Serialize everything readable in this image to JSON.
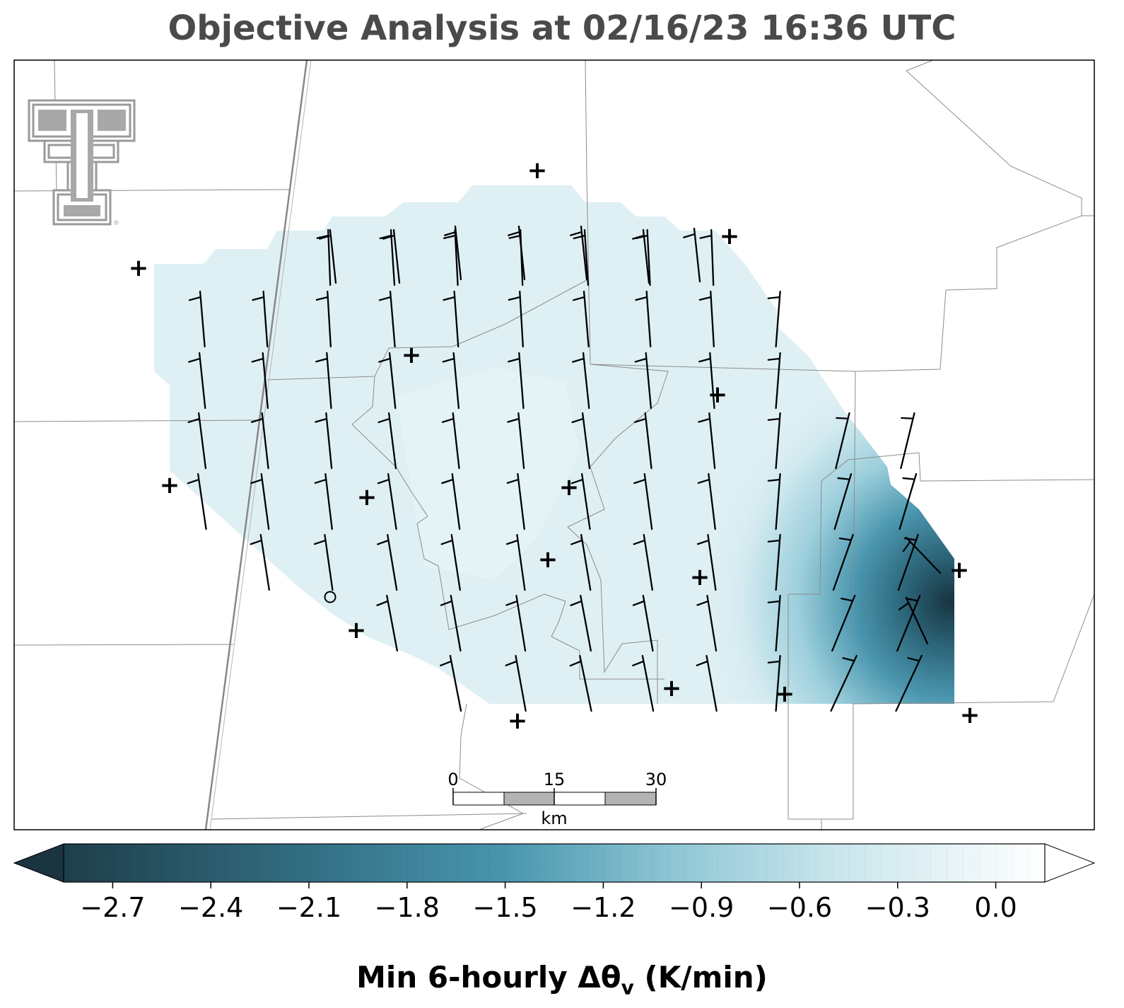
{
  "title": "Objective Analysis at 02/16/23 16:36 UTC",
  "colorbar": {
    "label_main": "Min 6-hourly Δθ",
    "label_sub": "v",
    "label_tail": " (K/min)",
    "min": -2.85,
    "max": 0.15,
    "colors": {
      "dark": "#1a3440",
      "mid": "#3d8ea8",
      "light": "#bfe2ea",
      "white": "#ffffff"
    },
    "ticks": [
      "−2.7",
      "−2.4",
      "−2.1",
      "−1.8",
      "−1.5",
      "−1.2",
      "−0.9",
      "−0.6",
      "−0.3",
      "0.0"
    ],
    "tick_values": [
      -2.7,
      -2.4,
      -2.1,
      -1.8,
      -1.5,
      -1.2,
      -0.9,
      -0.6,
      -0.3,
      0.0
    ]
  },
  "scalebar": {
    "ticks": [
      "0",
      "15",
      "30"
    ],
    "unit": "km"
  },
  "station_marker": "+",
  "logo": "texas-tech-double-t-logo"
}
